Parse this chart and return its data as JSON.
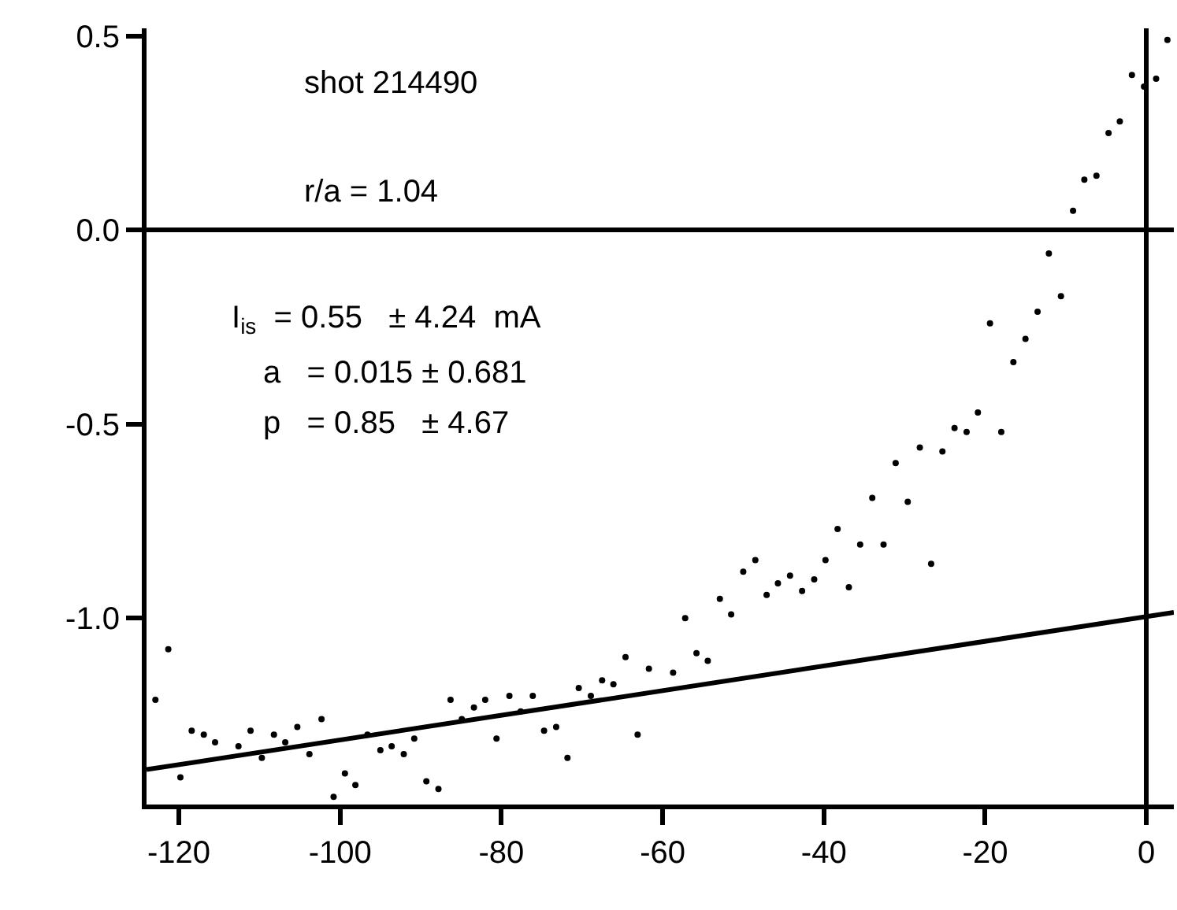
{
  "chart_data": {
    "type": "scatter",
    "xlim": [
      -124,
      3.4
    ],
    "ylim": [
      -1.48,
      0.52
    ],
    "xticks": [
      -120,
      -100,
      -80,
      -60,
      -40,
      -20,
      0
    ],
    "yticks": [
      {
        "value": -1.0,
        "label": "-1.0"
      },
      {
        "value": -0.5,
        "label": "-0.5"
      },
      {
        "value": 0.0,
        "label": "0.0"
      },
      {
        "value": 0.5,
        "label": "0.5"
      }
    ],
    "annotations": [
      "shot 214490",
      "r/a = 1.04",
      "I$_{is}$  = 0.55   ± 4.24  mA",
      "a   = 0.015 ± 0.681",
      "p   = 0.85   ± 4.67"
    ],
    "series": [
      {
        "marker": "circle",
        "color": "#000000",
        "x": [
          -122.9,
          -121.3,
          -119.8,
          -118.4,
          -116.9,
          -115.5,
          -112.6,
          -111.1,
          -109.7,
          -108.2,
          -106.8,
          -105.3,
          -103.8,
          -102.3,
          -100.8,
          -99.4,
          -98.1,
          -96.6,
          -95.0,
          -93.6,
          -92.1,
          -90.8,
          -89.3,
          -87.8,
          -86.3,
          -84.9,
          -83.4,
          -82.0,
          -80.6,
          -79.0,
          -77.6,
          -76.1,
          -74.7,
          -73.2,
          -71.8,
          -70.4,
          -68.9,
          -67.5,
          -66.1,
          -64.6,
          -63.1,
          -61.7,
          -58.7,
          -57.2,
          -55.8,
          -54.4,
          -52.9,
          -51.5,
          -50.0,
          -48.5,
          -47.1,
          -45.7,
          -44.2,
          -42.7,
          -41.2,
          -39.8,
          -38.3,
          -36.9,
          -35.5,
          -34.0,
          -32.6,
          -31.1,
          -29.6,
          -28.1,
          -26.7,
          -25.3,
          -23.8,
          -22.3,
          -20.9,
          -19.4,
          -18.0,
          -16.5,
          -15.0,
          -13.5,
          -12.1,
          -10.6,
          -9.1,
          -7.7,
          -6.2,
          -4.7,
          -3.3,
          -1.8,
          -0.3,
          1.2,
          2.6
        ],
        "values": [
          -1.21,
          -1.08,
          -1.41,
          -1.29,
          -1.3,
          -1.32,
          -1.33,
          -1.29,
          -1.36,
          -1.3,
          -1.32,
          -1.28,
          -1.35,
          -1.26,
          -1.46,
          -1.4,
          -1.43,
          -1.3,
          -1.34,
          -1.33,
          -1.35,
          -1.31,
          -1.42,
          -1.44,
          -1.21,
          -1.26,
          -1.23,
          -1.21,
          -1.31,
          -1.2,
          -1.24,
          -1.2,
          -1.29,
          -1.28,
          -1.36,
          -1.18,
          -1.2,
          -1.16,
          -1.17,
          -1.1,
          -1.3,
          -1.13,
          -1.14,
          -1.0,
          -1.09,
          -1.11,
          -0.95,
          -0.99,
          -0.88,
          -0.85,
          -0.94,
          -0.91,
          -0.89,
          -0.93,
          -0.9,
          -0.85,
          -0.77,
          -0.92,
          -0.81,
          -0.69,
          -0.81,
          -0.6,
          -0.7,
          -0.56,
          -0.86,
          -0.57,
          -0.51,
          -0.52,
          -0.47,
          -0.24,
          -0.52,
          -0.34,
          -0.28,
          -0.21,
          -0.06,
          -0.17,
          0.05,
          0.13,
          0.14,
          0.25,
          0.28,
          0.4,
          0.37,
          0.39,
          0.49
        ]
      },
      {
        "type": "line",
        "marker": "none",
        "color": "#000000",
        "x": [
          -124,
          3.4
        ],
        "values": [
          -1.39,
          -0.985
        ]
      }
    ]
  }
}
